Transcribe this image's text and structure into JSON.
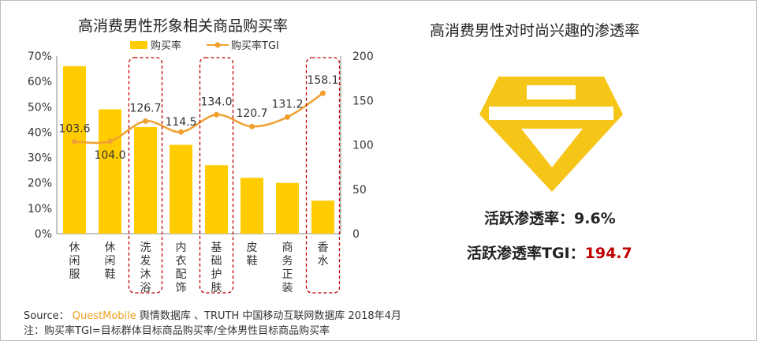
{
  "left_title": "高消费男性形象相关商品购买率",
  "right_title": "高消费男性对时尚兴趣的渗透率",
  "chart_data": {
    "type": "bar",
    "categories": [
      "休闲服",
      "休闲鞋",
      "洗发沐浴",
      "内衣配饰",
      "基础护肤",
      "皮鞋",
      "商务正装",
      "香水"
    ],
    "series": [
      {
        "name": "购买率",
        "type": "bar",
        "axis": "left",
        "values": [
          0.66,
          0.49,
          0.42,
          0.35,
          0.27,
          0.22,
          0.2,
          0.13
        ]
      },
      {
        "name": "购买率TGI",
        "type": "line",
        "axis": "right",
        "values": [
          103.6,
          104.0,
          126.7,
          114.5,
          134.0,
          120.7,
          131.2,
          158.1
        ]
      }
    ],
    "data_labels": [
      "103.6",
      "104.0",
      "126.7",
      "114.5",
      "134.0",
      "120.7",
      "131.2",
      "158.1"
    ],
    "y_left_ticks": [
      "0%",
      "10%",
      "20%",
      "30%",
      "40%",
      "50%",
      "60%",
      "70%"
    ],
    "y_left_lim": [
      0,
      0.7
    ],
    "y_right_ticks": [
      "0",
      "50",
      "100",
      "150",
      "200"
    ],
    "y_right_lim": [
      0,
      200
    ],
    "highlighted_categories": [
      "洗发沐浴",
      "基础护肤",
      "香水"
    ],
    "legend_position": "top",
    "grid": false,
    "colors": {
      "bar": "#FFCC00",
      "line": "#F0A030",
      "highlight_box": "#C00000"
    }
  },
  "diamond": {
    "color": "#F5C518"
  },
  "stats": {
    "active_label": "活跃渗透率：",
    "active_value": "9.6%",
    "tgi_label": "活跃渗透率TGI：",
    "tgi_value": "194.7"
  },
  "footer": {
    "source_prefix": "Source：",
    "brand": "QuestMobile",
    "source_text": "舆情数据库 、TRUTH 中国移动互联网数据库 2018年4月",
    "note": "注：购买率TGI=目标群体目标商品购买率/全体男性目标商品购买率"
  }
}
